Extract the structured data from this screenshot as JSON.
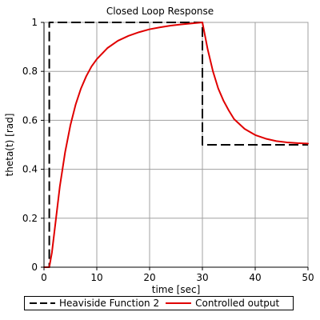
{
  "chart_data": {
    "type": "line",
    "title": "Closed Loop Response",
    "xlabel": "time [sec]",
    "ylabel": "theta(t) [rad]",
    "xlim": [
      0,
      50
    ],
    "ylim": [
      0,
      1
    ],
    "xticks": [
      0,
      10,
      20,
      30,
      40,
      50
    ],
    "yticks": [
      0,
      0.2,
      0.4,
      0.6,
      0.8,
      1
    ],
    "xtick_labels": [
      "0",
      "10",
      "20",
      "30",
      "40",
      "50"
    ],
    "ytick_labels": [
      "0",
      "0.2",
      "0.4",
      "0.6",
      "0.8",
      "1"
    ],
    "grid": true,
    "legend_position": "bottom",
    "series": [
      {
        "name": "Heaviside Function 2",
        "color": "#000000",
        "style": "dashed",
        "x": [
          0,
          1,
          1,
          30,
          30,
          50
        ],
        "y": [
          0,
          0,
          1,
          1,
          0.5,
          0.5
        ]
      },
      {
        "name": "Controlled output",
        "color": "#e00000",
        "style": "solid",
        "x": [
          0,
          1,
          1.5,
          2,
          3,
          4,
          5,
          6,
          7,
          8,
          9,
          10,
          12,
          14,
          16,
          18,
          20,
          22,
          24,
          26,
          28,
          30,
          31,
          32,
          33,
          34,
          35,
          36,
          38,
          40,
          42,
          44,
          46,
          48,
          50
        ],
        "y": [
          0,
          0,
          0.06,
          0.15,
          0.33,
          0.47,
          0.58,
          0.665,
          0.73,
          0.78,
          0.82,
          0.85,
          0.895,
          0.925,
          0.945,
          0.96,
          0.972,
          0.98,
          0.987,
          0.992,
          0.996,
          1.0,
          0.89,
          0.8,
          0.73,
          0.68,
          0.64,
          0.605,
          0.565,
          0.54,
          0.525,
          0.515,
          0.51,
          0.507,
          0.505
        ]
      }
    ]
  }
}
